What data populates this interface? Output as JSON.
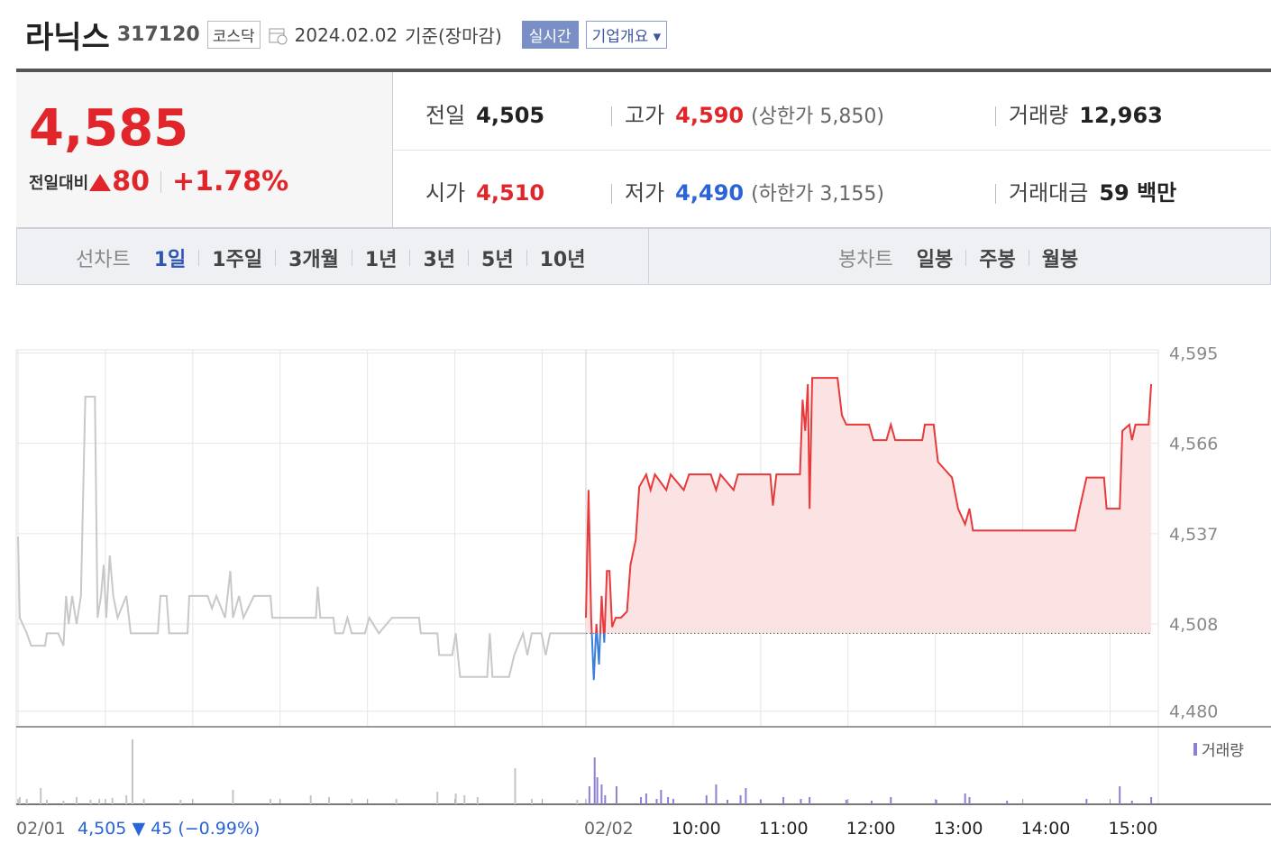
{
  "header": {
    "name": "라닉스",
    "code": "317120",
    "market": "코스닥",
    "date": "2024.02.02",
    "basis": "기준(장마감)",
    "realtime": "실시간",
    "info": "기업개요"
  },
  "quote": {
    "price": "4,585",
    "change_label": "전일대비",
    "change": "80",
    "rate": "+1.78%"
  },
  "stats": [
    [
      {
        "label": "전일",
        "value": "4,505"
      },
      {
        "label": "고가",
        "value": "4,590",
        "extra": "(상한가 5,850)"
      },
      {
        "label": "거래량",
        "value": "12,963"
      }
    ],
    [
      {
        "label": "시가",
        "value": "4,510"
      },
      {
        "label": "저가",
        "value": "4,490",
        "extra": "(하한가 3,155)"
      },
      {
        "label": "거래대금",
        "value": "59 백만"
      }
    ]
  ],
  "tabs": {
    "line": {
      "label": "선차트",
      "items": [
        "1일",
        "1주일",
        "3개월",
        "1년",
        "3년",
        "5년",
        "10년"
      ]
    },
    "candle": {
      "label": "봉차트",
      "items": [
        "일봉",
        "주봉",
        "월봉"
      ]
    }
  },
  "chart_data": {
    "type": "line",
    "xlim": [
      0,
      13
    ],
    "ylim": [
      4475,
      4596
    ],
    "yticks": [
      {
        "value": 4595,
        "label": "4,595"
      },
      {
        "value": 4566,
        "label": "4,566"
      },
      {
        "value": 4537,
        "label": "4,537"
      },
      {
        "value": 4508,
        "label": "4,508"
      },
      {
        "value": 4480,
        "label": "4,480"
      }
    ],
    "xticks": [
      {
        "value": 0,
        "label": "02/01"
      },
      {
        "value": 1,
        "label": null
      },
      {
        "value": 2,
        "label": null
      },
      {
        "value": 3,
        "label": null
      },
      {
        "value": 4,
        "label": null
      },
      {
        "value": 5,
        "label": null
      },
      {
        "value": 6,
        "label": null
      },
      {
        "value": 6.5,
        "label": "02/02"
      },
      {
        "value": 7.5,
        "label": "10:00"
      },
      {
        "value": 8.5,
        "label": "11:00"
      },
      {
        "value": 9.5,
        "label": "12:00"
      },
      {
        "value": 10.5,
        "label": "13:00"
      },
      {
        "value": 11.5,
        "label": "14:00"
      },
      {
        "value": 12.5,
        "label": "15:00"
      }
    ],
    "baseline": 4505,
    "series": [
      {
        "name": "02/01",
        "color": "#c8c8c8",
        "x": [
          0,
          0.02,
          0.1,
          0.15,
          0.31,
          0.33,
          0.46,
          0.52,
          0.55,
          0.58,
          0.62,
          0.67,
          0.72,
          0.77,
          0.88,
          0.91,
          0.95,
          0.98,
          1.01,
          1.05,
          1.09,
          1.14,
          1.24,
          1.29,
          1.6,
          1.63,
          1.7,
          1.73,
          1.94,
          1.96,
          2.17,
          2.22,
          2.27,
          2.37,
          2.43,
          2.46,
          2.53,
          2.58,
          2.7,
          2.89,
          2.91,
          3.41,
          3.43,
          3.46,
          3.61,
          3.63,
          3.72,
          3.77,
          3.82,
          3.97,
          4.02,
          4.13,
          4.28,
          4.59,
          4.61,
          4.8,
          4.82,
          4.97,
          5.01,
          5.06,
          5.37,
          5.4,
          5.43,
          5.62,
          5.68,
          5.78,
          5.83,
          5.88,
          5.99,
          6.04,
          6.09,
          6.5
        ],
        "values": [
          4536,
          4510,
          4505,
          4501,
          4501,
          4505,
          4505,
          4501,
          4517,
          4508,
          4517,
          4508,
          4517,
          4581,
          4581,
          4510,
          4517,
          4527,
          4510,
          4530,
          4517,
          4510,
          4517,
          4505,
          4505,
          4517,
          4517,
          4505,
          4505,
          4517,
          4517,
          4513,
          4517,
          4510,
          4525,
          4510,
          4517,
          4510,
          4517,
          4517,
          4510,
          4510,
          4520,
          4510,
          4510,
          4505,
          4505,
          4510,
          4505,
          4505,
          4510,
          4505,
          4510,
          4510,
          4505,
          4505,
          4498,
          4498,
          4505,
          4491,
          4491,
          4505,
          4491,
          4491,
          4498,
          4505,
          4498,
          4505,
          4505,
          4498,
          4505,
          4505
        ]
      },
      {
        "name": "02/02",
        "color": "#e8393b",
        "color_down": "#3a7fdc",
        "fill": "#fbe3e3",
        "x": [
          6.5,
          6.53,
          6.56,
          6.59,
          6.62,
          6.65,
          6.68,
          6.71,
          6.74,
          6.77,
          6.8,
          6.84,
          6.9,
          6.97,
          7.01,
          7.07,
          7.11,
          7.19,
          7.24,
          7.29,
          7.42,
          7.47,
          7.62,
          7.68,
          7.93,
          7.99,
          8.04,
          8.19,
          8.24,
          8.61,
          8.64,
          8.68,
          8.95,
          8.98,
          9.01,
          9.04,
          9.06,
          9.09,
          9.38,
          9.43,
          9.48,
          9.74,
          9.79,
          9.94,
          9.99,
          10.04,
          10.35,
          10.38,
          10.48,
          10.53,
          10.69,
          10.76,
          10.84,
          10.89,
          10.93,
          12.1,
          12.15,
          12.23,
          12.43,
          12.46,
          12.61,
          12.64,
          12.72,
          12.75,
          12.79,
          12.94,
          12.97
        ],
        "values": [
          4510,
          4551,
          4510,
          4490,
          4508,
          4495,
          4517,
          4502,
          4525,
          4525,
          4507,
          4510,
          4510,
          4512,
          4527,
          4535,
          4552,
          4556,
          4551,
          4556,
          4551,
          4556,
          4551,
          4556,
          4556,
          4551,
          4556,
          4551,
          4556,
          4556,
          4546,
          4556,
          4556,
          4580,
          4570,
          4585,
          4545,
          4587,
          4587,
          4575,
          4572,
          4572,
          4567,
          4567,
          4572,
          4567,
          4567,
          4572,
          4572,
          4560,
          4555,
          4545,
          4540,
          4545,
          4538,
          4538,
          4545,
          4555,
          4555,
          4545,
          4545,
          4570,
          4572,
          4567,
          4572,
          4572,
          4585
        ]
      }
    ],
    "volume": {
      "name": "거래량",
      "ylim": [
        0,
        2800
      ],
      "series": [
        {
          "color": "#c4c4c4",
          "x": [
            0.02,
            0.1,
            0.26,
            0.33,
            0.52,
            0.67,
            0.83,
            0.93,
            1.08,
            1.24,
            1.31,
            1.44,
            1.86,
            2.46,
            2.89,
            3.35,
            3.56,
            3.82,
            4.33,
            4.8,
            5.01,
            5.11,
            5.26,
            5.69,
            5.88,
            6.4
          ],
          "values": [
            280,
            210,
            630,
            175,
            140,
            280,
            175,
            210,
            245,
            350,
            2520,
            210,
            175,
            560,
            210,
            350,
            280,
            210,
            210,
            490,
            420,
            350,
            280,
            1400,
            210,
            175
          ]
        },
        {
          "color": "#8c80d2",
          "x": [
            6.54,
            6.6,
            6.63,
            6.68,
            6.72,
            6.85,
            7.13,
            7.19,
            7.31,
            7.36,
            7.44,
            7.5,
            7.88,
            7.99,
            8.12,
            8.27,
            8.33,
            8.5,
            8.76,
            8.96,
            9.06,
            9.48,
            9.77,
            9.99,
            10.51,
            10.84,
            10.89,
            11.32,
            12.23,
            12.61,
            12.75,
            12.97
          ],
          "values": [
            700,
            1820,
            1050,
            770,
            350,
            700,
            280,
            420,
            210,
            560,
            280,
            210,
            350,
            770,
            175,
            350,
            630,
            175,
            280,
            210,
            280,
            175,
            140,
            280,
            175,
            420,
            280,
            140,
            210,
            700,
            140,
            280
          ]
        }
      ]
    },
    "prev_day": {
      "close": "4,505",
      "change": "45",
      "rate": "(−0.99%)"
    }
  }
}
